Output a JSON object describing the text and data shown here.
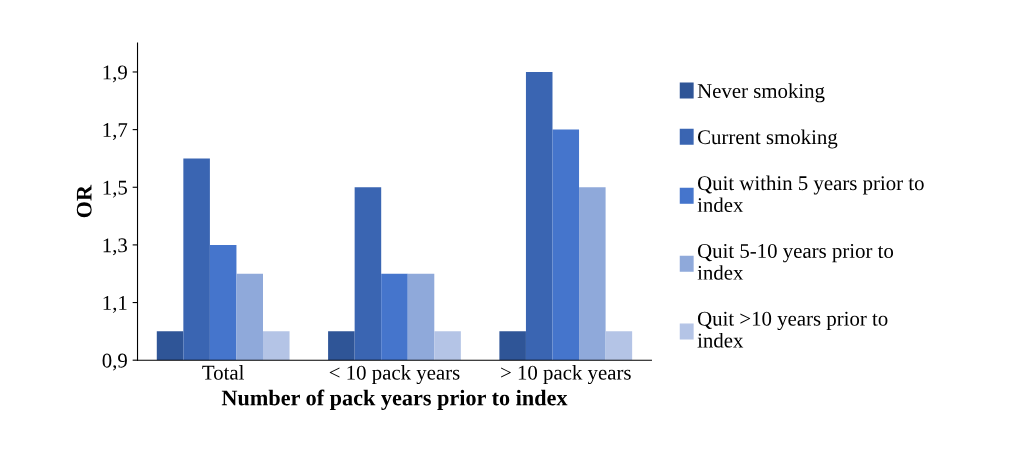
{
  "chart_data": {
    "type": "bar",
    "xlabel": "Number of pack years prior to index",
    "ylabel": "OR",
    "categories": [
      "Total",
      "< 10 pack years",
      "> 10 pack years"
    ],
    "series": [
      {
        "name": "Never smoking",
        "color": "#2f5597",
        "values": [
          1.0,
          1.0,
          1.0
        ]
      },
      {
        "name": "Current smoking",
        "color": "#3a65b2",
        "values": [
          1.6,
          1.5,
          1.9
        ]
      },
      {
        "name": "Quit within 5 years prior to index",
        "color": "#4575cc",
        "values": [
          1.3,
          1.2,
          1.7
        ]
      },
      {
        "name": "Quit 5-10 years prior to index",
        "color": "#8fa9da",
        "values": [
          1.2,
          1.2,
          1.5
        ]
      },
      {
        "name": "Quit >10 years prior to index",
        "color": "#b4c4e6",
        "values": [
          1.0,
          1.0,
          1.0
        ]
      }
    ],
    "ylim": [
      0.9,
      2.0
    ],
    "yticks": [
      {
        "value": 0.9,
        "label": "0,9"
      },
      {
        "value": 1.1,
        "label": "1,1"
      },
      {
        "value": 1.3,
        "label": "1,3"
      },
      {
        "value": 1.5,
        "label": "1,5"
      },
      {
        "value": 1.7,
        "label": "1,7"
      },
      {
        "value": 1.9,
        "label": "1,9"
      }
    ],
    "grid": false,
    "legend": "right"
  }
}
